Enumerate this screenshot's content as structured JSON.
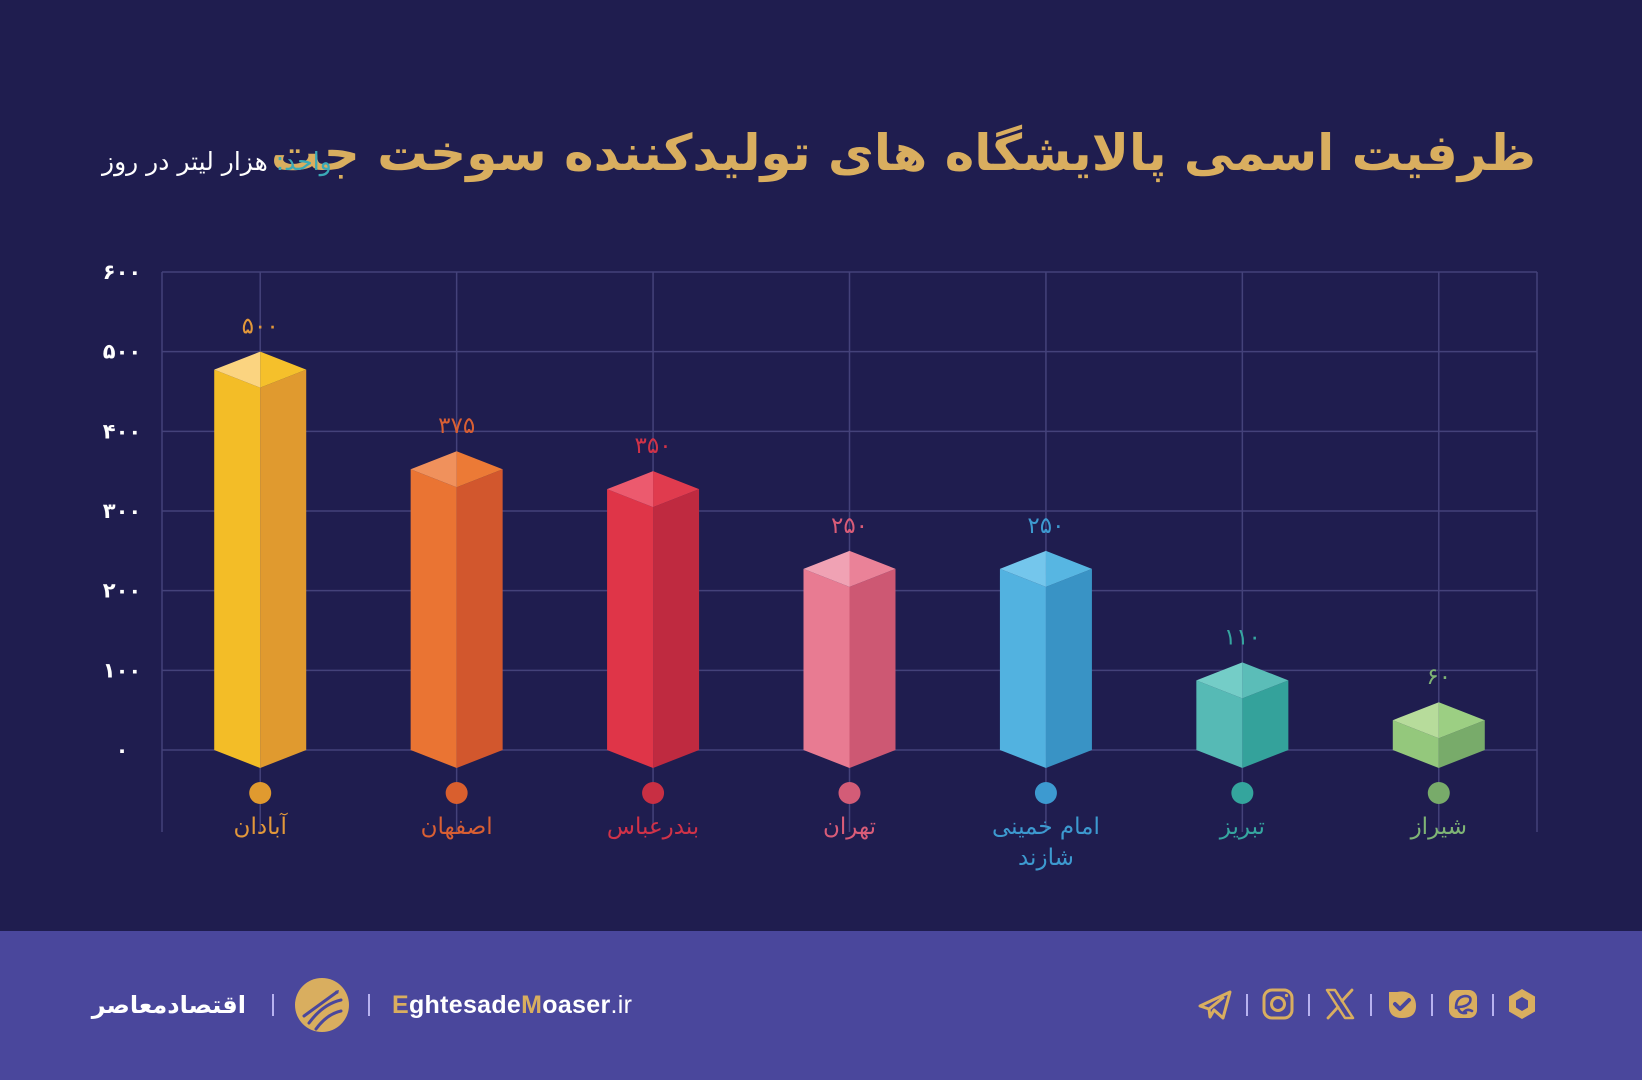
{
  "header": {
    "title": "ظرفیت اسمی پالایشگاه های تولیدکننده سوخت جت",
    "unit_key": "واحد:",
    "unit_value": " هزار لیتر در روز"
  },
  "colors": {
    "background": "#1f1d4f",
    "footer": "#4a479c",
    "title": "#d9ae5f",
    "grid": "#44427a"
  },
  "chart_data": {
    "type": "bar",
    "title": "ظرفیت اسمی پالایشگاه های تولیدکننده سوخت جت",
    "xlabel": "",
    "ylabel": "هزار لیتر در روز",
    "ylim": [
      0,
      600
    ],
    "yticks": [
      0,
      100,
      200,
      300,
      400,
      500,
      600
    ],
    "ytick_labels": [
      "۰",
      "۱۰۰",
      "۲۰۰",
      "۳۰۰",
      "۴۰۰",
      "۵۰۰",
      "۶۰۰"
    ],
    "grid": true,
    "style": "3d-isometric-prisms",
    "categories": [
      "آبادان",
      "اصفهان",
      "بندرعباس",
      "تهران",
      "امام خمینی شازند",
      "تبریز",
      "شیراز"
    ],
    "category_lines": [
      [
        "آبادان"
      ],
      [
        "اصفهان"
      ],
      [
        "بندرعباس"
      ],
      [
        "تهران"
      ],
      [
        "امام خمینی",
        "شازند"
      ],
      [
        "تبریز"
      ],
      [
        "شیراز"
      ]
    ],
    "values": [
      500,
      375,
      350,
      250,
      250,
      110,
      60
    ],
    "value_labels": [
      "۵۰۰",
      "۳۷۵",
      "۳۵۰",
      "۲۵۰",
      "۲۵۰",
      "۱۱۰",
      "۶۰"
    ],
    "bar_colors": [
      {
        "front": "#f3bd27",
        "side": "#e09a2f",
        "top_l": "#fbd480",
        "top_r": "#f5c02b",
        "label": "#e3983a",
        "dot": "#e09a2f"
      },
      {
        "front": "#ea7433",
        "side": "#d2572d",
        "top_l": "#f0915c",
        "top_r": "#ec7a36",
        "label": "#d95f33",
        "dot": "#d95f2e"
      },
      {
        "front": "#df3548",
        "side": "#bf2a40",
        "top_l": "#ec5a6e",
        "top_r": "#e03b4e",
        "label": "#d03248",
        "dot": "#c82f43"
      },
      {
        "front": "#e87b92",
        "side": "#cd5873",
        "top_l": "#f0a2b4",
        "top_r": "#ea8298",
        "label": "#d95c78",
        "dot": "#d35c77"
      },
      {
        "front": "#52b2e0",
        "side": "#3993c5",
        "top_l": "#74c6ec",
        "top_r": "#57b6e2",
        "label": "#3d9ad0",
        "dot": "#3d9ad0"
      },
      {
        "front": "#56bab5",
        "side": "#34a29b",
        "top_l": "#74cdc7",
        "top_r": "#5bbdb8",
        "label": "#36a6a0",
        "dot": "#34a59d"
      },
      {
        "front": "#94c87c",
        "side": "#78ab6a",
        "top_l": "#b7dc9b",
        "top_r": "#9ccf83",
        "label": "#7fb475",
        "dot": "#78ab6a"
      }
    ]
  },
  "footer": {
    "brand_fa": "اقتصادمعاصر",
    "site_e": "E",
    "site_a": "ghtesade",
    "site_m": "M",
    "site_b": "oaser",
    "site_tld": ".ir",
    "social_icons": [
      "telegram-icon",
      "instagram-icon",
      "x-icon",
      "check-badge-icon",
      "e-app-icon",
      "hexagon-app-icon"
    ]
  }
}
